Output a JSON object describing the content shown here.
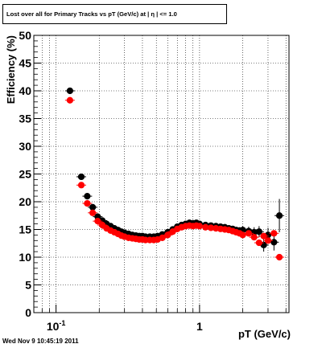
{
  "title": "Lost over all for Primary Tracks vs pT (GeV/c) at |  η | <= 1.0",
  "footer_date": "Wed Nov  9 10:45:19 2011",
  "chart_data": {
    "type": "scatter",
    "title": "Lost over all for Primary Tracks vs pT (GeV/c) at |  η | <= 1.0",
    "xlabel": "pT (GeV/c)",
    "ylabel": "Efficiency (%)",
    "x_scale": "log",
    "xlim": [
      0.07,
      4.2
    ],
    "ylim": [
      0,
      50
    ],
    "y_ticks": [
      0,
      5,
      10,
      15,
      20,
      25,
      30,
      35,
      40,
      45,
      50
    ],
    "x_tick_labels": [
      {
        "value": 0.1,
        "label": "10",
        "exponent": "-1"
      },
      {
        "value": 1,
        "label": "1",
        "exponent": ""
      }
    ],
    "grid": true,
    "series": [
      {
        "color": "#000000",
        "x": [
          0.125,
          0.15,
          0.165,
          0.18,
          0.195,
          0.21,
          0.225,
          0.24,
          0.255,
          0.27,
          0.285,
          0.3,
          0.32,
          0.34,
          0.36,
          0.38,
          0.4,
          0.42,
          0.45,
          0.48,
          0.51,
          0.55,
          0.6,
          0.65,
          0.7,
          0.75,
          0.8,
          0.85,
          0.9,
          0.95,
          1.0,
          1.1,
          1.2,
          1.3,
          1.4,
          1.5,
          1.6,
          1.7,
          1.8,
          1.9,
          2.0,
          2.2,
          2.4,
          2.6,
          2.8,
          3.0,
          3.3,
          3.6
        ],
        "y": [
          40.0,
          24.5,
          21.0,
          19.0,
          17.3,
          16.6,
          16.0,
          15.6,
          15.2,
          14.9,
          14.6,
          14.4,
          14.2,
          14.0,
          13.9,
          13.8,
          13.8,
          13.7,
          13.7,
          13.7,
          13.8,
          14.1,
          14.5,
          15.0,
          15.5,
          15.8,
          16.0,
          16.2,
          16.1,
          16.2,
          16.0,
          15.8,
          15.7,
          15.6,
          15.5,
          15.4,
          15.2,
          15.1,
          14.9,
          14.8,
          14.9,
          14.7,
          14.5,
          14.6,
          12.2,
          14.0,
          12.7,
          17.5
        ],
        "yerr": [
          0.5,
          0.5,
          0.5,
          0.4,
          0.4,
          0.3,
          0.3,
          0.3,
          0.3,
          0.3,
          0.3,
          0.3,
          0.3,
          0.3,
          0.3,
          0.3,
          0.3,
          0.3,
          0.3,
          0.3,
          0.3,
          0.3,
          0.3,
          0.3,
          0.3,
          0.3,
          0.3,
          0.3,
          0.3,
          0.3,
          0.3,
          0.3,
          0.4,
          0.4,
          0.4,
          0.4,
          0.5,
          0.5,
          0.5,
          0.6,
          0.7,
          0.8,
          0.9,
          1.0,
          1.2,
          1.3,
          1.5,
          3.0
        ]
      },
      {
        "color": "#ff0000",
        "x": [
          0.125,
          0.15,
          0.165,
          0.18,
          0.195,
          0.21,
          0.225,
          0.24,
          0.255,
          0.27,
          0.285,
          0.3,
          0.32,
          0.34,
          0.36,
          0.38,
          0.4,
          0.42,
          0.45,
          0.48,
          0.51,
          0.55,
          0.6,
          0.65,
          0.7,
          0.75,
          0.8,
          0.85,
          0.9,
          0.95,
          1.0,
          1.1,
          1.2,
          1.3,
          1.4,
          1.5,
          1.6,
          1.7,
          1.8,
          1.9,
          2.0,
          2.2,
          2.4,
          2.6,
          2.8,
          3.0,
          3.3,
          3.6
        ],
        "y": [
          38.3,
          23.0,
          19.7,
          18.0,
          16.5,
          15.8,
          15.2,
          14.8,
          14.5,
          14.2,
          13.9,
          13.7,
          13.5,
          13.4,
          13.3,
          13.2,
          13.2,
          13.1,
          13.1,
          13.1,
          13.2,
          13.5,
          14.0,
          14.6,
          15.1,
          15.4,
          15.6,
          15.7,
          15.6,
          15.7,
          15.6,
          15.4,
          15.3,
          15.2,
          15.1,
          15.0,
          14.9,
          14.7,
          14.5,
          14.3,
          14.0,
          14.3,
          13.6,
          12.6,
          13.8,
          13.0,
          14.3,
          10.0
        ]
      }
    ]
  }
}
